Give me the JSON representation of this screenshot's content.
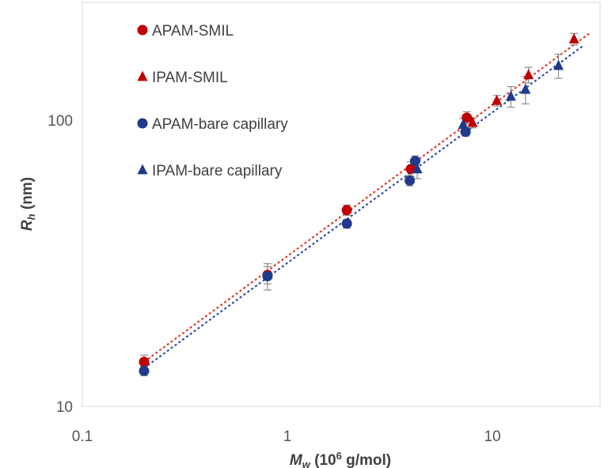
{
  "chart_data": {
    "type": "scatter",
    "x_scale": "log",
    "y_scale": "log",
    "xlim": [
      0.1,
      35
    ],
    "ylim": [
      10,
      250
    ],
    "x_ticks": [
      "0.1",
      "1",
      "10"
    ],
    "y_ticks": [
      "10",
      "100"
    ],
    "x_tick_values": [
      0.1,
      1,
      10
    ],
    "y_tick_values": [
      10,
      100
    ],
    "xlabel": {
      "main": "M",
      "sub": "w",
      "rest": " (10",
      "sup": "6",
      "end": " g/mol)"
    },
    "ylabel": {
      "main": "R",
      "sub": "h",
      "rest": " (nm)"
    },
    "grid": false,
    "legend_position": "top-left",
    "series": [
      {
        "name": "APAM-SMIL",
        "marker": "circle",
        "color": "#c00000",
        "points": [
          {
            "x": 0.2,
            "y": 14.3,
            "err": 0.8
          },
          {
            "x": 0.8,
            "y": 28.8,
            "err": 2.0
          },
          {
            "x": 1.95,
            "y": 48.5,
            "err": 2.0
          },
          {
            "x": 4.0,
            "y": 67.5,
            "err": 4.0
          },
          {
            "x": 7.5,
            "y": 102,
            "err": 5.0
          }
        ]
      },
      {
        "name": "IPAM-SMIL",
        "marker": "triangle",
        "color": "#c00000",
        "points": [
          {
            "x": 8.0,
            "y": 98,
            "err": 4.0
          },
          {
            "x": 10.5,
            "y": 117,
            "err": 5.0
          },
          {
            "x": 15.0,
            "y": 144,
            "err": 9.0
          },
          {
            "x": 25.0,
            "y": 192,
            "err": 9.0
          }
        ]
      },
      {
        "name": "APAM-bare capillary",
        "marker": "circle",
        "color": "#1f3a8a",
        "points": [
          {
            "x": 0.2,
            "y": 13.3,
            "err": 0.5
          },
          {
            "x": 0.8,
            "y": 28.5,
            "err": 3.0
          },
          {
            "x": 1.95,
            "y": 43.5,
            "err": 1.5
          },
          {
            "x": 3.95,
            "y": 61.5,
            "err": 2.5
          },
          {
            "x": 4.2,
            "y": 72,
            "err": 3.0
          },
          {
            "x": 7.4,
            "y": 91,
            "err": 3.0
          }
        ]
      },
      {
        "name": "IPAM-bare capillary",
        "marker": "triangle",
        "color": "#1f3a8a",
        "points": [
          {
            "x": 4.3,
            "y": 67.5,
            "err": 5.0
          },
          {
            "x": 7.2,
            "y": 96.5,
            "err": 5.0
          },
          {
            "x": 12.3,
            "y": 121,
            "err": 10.0
          },
          {
            "x": 14.5,
            "y": 128,
            "err": 14.0
          },
          {
            "x": 21.0,
            "y": 155,
            "err": 15.0
          }
        ]
      }
    ],
    "trendlines": [
      {
        "series": "SMIL",
        "color": "#e03c31",
        "x": [
          0.2,
          30
        ],
        "y": [
          14.3,
          202
        ]
      },
      {
        "series": "bare",
        "color": "#2f4fa8",
        "x": [
          0.2,
          28
        ],
        "y": [
          13.6,
          183
        ]
      }
    ]
  }
}
